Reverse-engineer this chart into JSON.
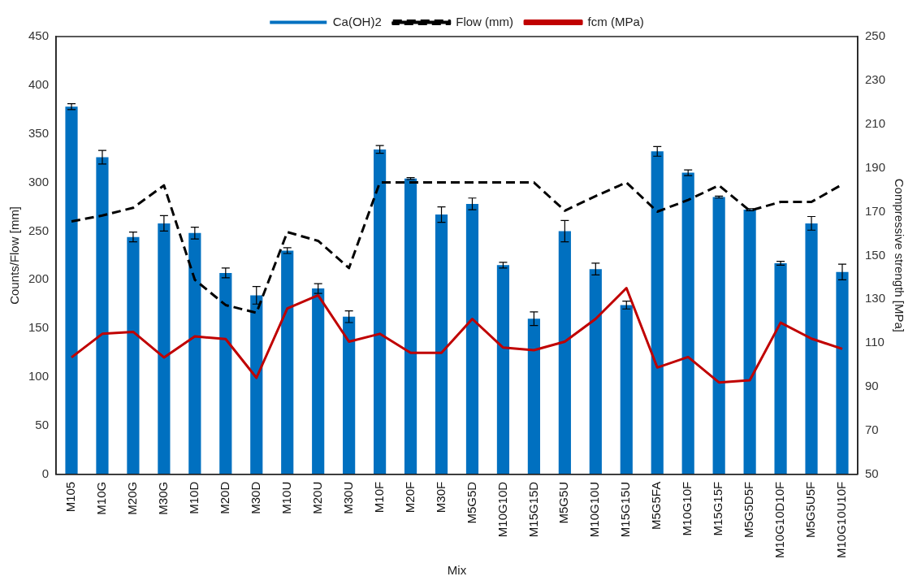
{
  "chart_data": {
    "type": "bar",
    "xlabel": "Mix",
    "ylabel": "Counts/Flow [mm]",
    "y2label": "Compressive strength [MPa]",
    "categories": [
      "M105",
      "M10G",
      "M20G",
      "M30G",
      "M10D",
      "M20D",
      "M30D",
      "M10U",
      "M20U",
      "M30U",
      "M10F",
      "M20F",
      "M30F",
      "M5G5D",
      "M10G10D",
      "M15G15D",
      "M5G5U",
      "M10G10U",
      "M15G15U",
      "M5G5FA",
      "M10G10F",
      "M15G15F",
      "M5G5D5F",
      "M10G10D10F",
      "M5G5U5F",
      "M10G10U10F"
    ],
    "series": [
      {
        "name": "Ca(OH)2",
        "color": "#0070c0",
        "values": [
          378,
          326,
          244,
          258,
          248,
          207,
          184,
          230,
          191,
          162,
          334,
          304,
          267,
          278,
          215,
          160,
          250,
          211,
          174,
          332,
          310,
          285,
          272,
          217,
          258,
          208
        ],
        "errors": [
          3,
          7,
          5,
          8,
          6,
          5,
          9,
          3,
          5,
          6,
          4,
          1,
          8,
          6,
          3,
          7,
          11,
          6,
          4,
          5,
          3,
          1,
          1,
          2,
          7,
          8
        ]
      },
      {
        "name": "Flow (mm)",
        "type": "line",
        "color": "#000000",
        "line_style": "dashed",
        "values": [
          260,
          266,
          274,
          297,
          200,
          174,
          166,
          249,
          240,
          212,
          300,
          300,
          300,
          300,
          300,
          300,
          271,
          286,
          300,
          270,
          282,
          297,
          271,
          280,
          280,
          298
        ]
      },
      {
        "name": "fcm (MPa)",
        "type": "line",
        "axis": "y2",
        "color": "#c00000",
        "line_style": "solid",
        "values": [
          103.4,
          114.2,
          115.1,
          103.4,
          113,
          111.8,
          94.1,
          125.8,
          131.8,
          110.6,
          114.2,
          105.5,
          105.5,
          121,
          107.9,
          106.7,
          110.6,
          121,
          135.1,
          98.8,
          103.6,
          92,
          93,
          119.3,
          112,
          107.3
        ]
      }
    ],
    "ylim": [
      0,
      450
    ],
    "yticks": [
      0,
      50,
      100,
      150,
      200,
      250,
      300,
      350,
      400,
      450
    ],
    "y2lim": [
      50,
      250
    ],
    "y2ticks": [
      50,
      70,
      90,
      110,
      130,
      150,
      170,
      190,
      210,
      230,
      250
    ],
    "grid": false,
    "legend": "top",
    "marker": "none"
  }
}
